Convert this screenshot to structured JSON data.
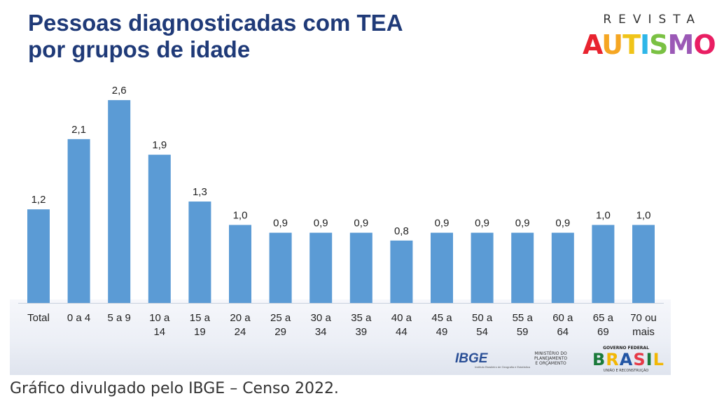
{
  "header": {
    "title_line1": "Pessoas diagnosticadas com TEA",
    "title_line2": "por grupos de idade"
  },
  "logo": {
    "top_text": "REVISTA",
    "main_text": "AUTISMO",
    "colors": [
      "#e8232f",
      "#f5a623",
      "#f0c419",
      "#2eb6e8",
      "#7ac143",
      "#9b59b6",
      "#e91e63"
    ]
  },
  "chart_data": {
    "type": "bar",
    "title": "Pessoas diagnosticadas com TEA por grupos de idade",
    "xlabel": "",
    "ylabel": "",
    "ylim": [
      0,
      2.6
    ],
    "grid": false,
    "bar_color": "#5b9bd5",
    "categories": [
      [
        "Total"
      ],
      [
        "0 a 4"
      ],
      [
        "5 a 9"
      ],
      [
        "10 a",
        "14"
      ],
      [
        "15 a",
        "19"
      ],
      [
        "20 a",
        "24"
      ],
      [
        "25 a",
        "29"
      ],
      [
        "30 a",
        "34"
      ],
      [
        "35 a",
        "39"
      ],
      [
        "40 a",
        "44"
      ],
      [
        "45 a",
        "49"
      ],
      [
        "50 a",
        "54"
      ],
      [
        "55 a",
        "59"
      ],
      [
        "60 a",
        "64"
      ],
      [
        "65 a",
        "69"
      ],
      [
        "70 ou",
        "mais"
      ]
    ],
    "values": [
      1.2,
      2.1,
      2.6,
      1.9,
      1.3,
      1.0,
      0.9,
      0.9,
      0.9,
      0.8,
      0.9,
      0.9,
      0.9,
      0.9,
      1.0,
      1.0
    ],
    "value_labels": [
      "1,2",
      "2,1",
      "2,6",
      "1,9",
      "1,3",
      "1,0",
      "0,9",
      "0,9",
      "0,9",
      "0,8",
      "0,9",
      "0,9",
      "0,9",
      "0,9",
      "1,0",
      "1,0"
    ]
  },
  "footer": {
    "ibge_logo": "IBGE",
    "ibge_sub": "Instituto Brasileiro de Geografia e Estatística",
    "ministry_line1": "MINISTÉRIO DO",
    "ministry_line2": "PLANEJAMENTO",
    "ministry_line3": "E ORÇAMENTO",
    "gov_top": "GOVERNO FEDERAL",
    "gov_main": "BRASIL",
    "gov_sub": "UNIÃO E RECONSTRUÇÃO"
  },
  "caption": "Gráfico divulgado pelo IBGE – Censo 2022."
}
